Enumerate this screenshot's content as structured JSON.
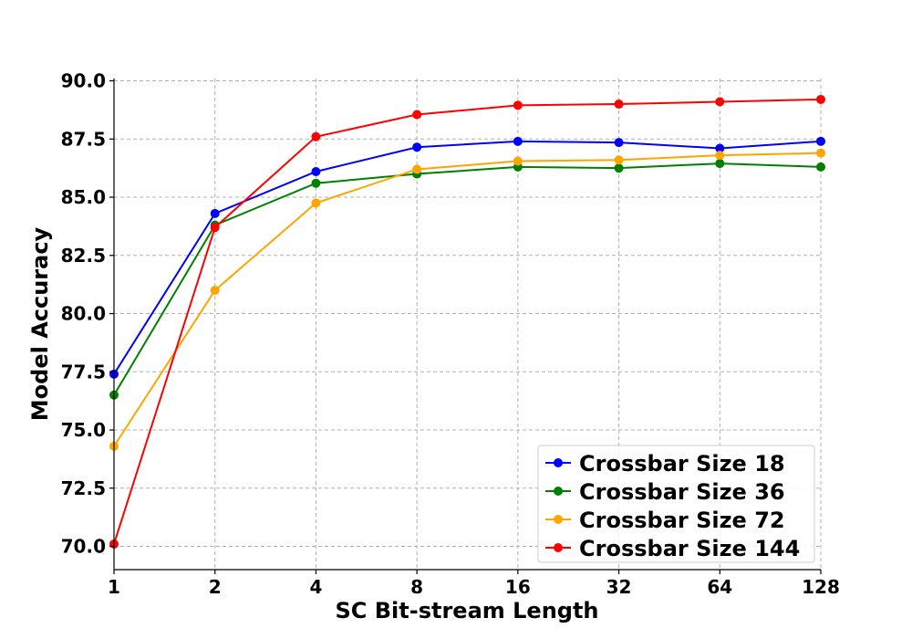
{
  "chart_data": {
    "type": "line",
    "title": "",
    "xlabel": "SC Bit-stream Length",
    "ylabel": "Model Accuracy",
    "x_scale": "log2",
    "categories": [
      "1",
      "2",
      "4",
      "8",
      "16",
      "32",
      "64",
      "128"
    ],
    "x": [
      1,
      2,
      4,
      8,
      16,
      32,
      64,
      128
    ],
    "ylim": [
      69.0,
      90.1
    ],
    "yticks": [
      "70.0",
      "72.5",
      "75.0",
      "77.5",
      "80.0",
      "82.5",
      "85.0",
      "87.5",
      "90.0"
    ],
    "ytick_values": [
      70.0,
      72.5,
      75.0,
      77.5,
      80.0,
      82.5,
      85.0,
      87.5,
      90.0
    ],
    "grid": true,
    "legend_position": "bottom-right",
    "series": [
      {
        "name": "Crossbar Size 18",
        "color": "#0000ff",
        "values": [
          77.4,
          84.3,
          86.1,
          87.15,
          87.4,
          87.35,
          87.1,
          87.4
        ]
      },
      {
        "name": "Crossbar Size 36",
        "color": "#008000",
        "values": [
          76.5,
          83.8,
          85.6,
          86.0,
          86.3,
          86.25,
          86.45,
          86.3
        ]
      },
      {
        "name": "Crossbar Size 72",
        "color": "#ffa500",
        "values": [
          74.3,
          81.0,
          84.75,
          86.2,
          86.55,
          86.6,
          86.8,
          86.9
        ]
      },
      {
        "name": "Crossbar Size 144",
        "color": "#ff0000",
        "values": [
          70.1,
          83.7,
          87.6,
          88.55,
          88.95,
          89.0,
          89.1,
          89.2
        ]
      }
    ]
  }
}
